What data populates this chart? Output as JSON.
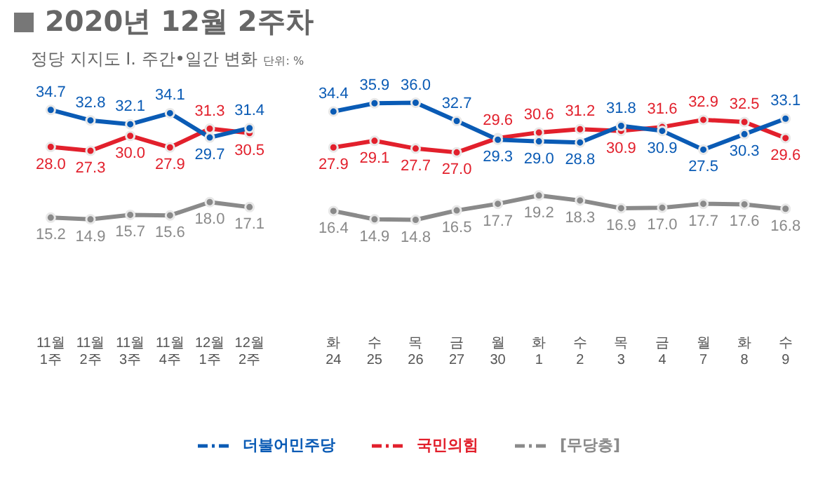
{
  "chart_data": [
    {
      "type": "line",
      "title": "2020년 12월 2주차",
      "subtitle": "정당 지지도 Ⅰ. 주간•일간 변화",
      "annotations": [
        "단위: %"
      ],
      "categories": [
        "11월\n1주",
        "11월\n2주",
        "11월\n3주",
        "11월\n4주",
        "12월\n1주",
        "12월\n2주"
      ],
      "series": [
        {
          "name": "더불어민주당",
          "color": "#0a5bb5",
          "values": [
            34.7,
            32.8,
            32.1,
            34.1,
            29.7,
            31.4
          ],
          "value_labels": [
            "34.7",
            "32.8",
            "32.1",
            "34.1",
            "29.7",
            "31.4"
          ]
        },
        {
          "name": "국민의힘",
          "color": "#e2202c",
          "values": [
            28.0,
            27.3,
            30.0,
            27.9,
            31.3,
            30.5
          ],
          "value_labels": [
            "28.0",
            "27.3",
            "30.0",
            "27.9",
            "31.3",
            "30.5"
          ]
        },
        {
          "name": "[무당층]",
          "color": "#8a8a8a",
          "values": [
            15.2,
            14.9,
            15.7,
            15.6,
            18.0,
            17.1
          ],
          "value_labels": [
            "15.2",
            "14.9",
            "15.7",
            "15.6",
            "18.0",
            "17.1"
          ]
        }
      ],
      "marker": "circle",
      "line_style": "solid",
      "grid": false,
      "legend": "bottom",
      "tick_labels": "x"
    },
    {
      "type": "line",
      "categories": [
        "화\n24",
        "수\n25",
        "목\n26",
        "금\n27",
        "월\n30",
        "화\n1",
        "수\n2",
        "목\n3",
        "금\n4",
        "월\n7",
        "화\n8",
        "수\n9"
      ],
      "series": [
        {
          "color": "#0a5bb5",
          "values": [
            34.4,
            35.9,
            36.0,
            32.7,
            29.3,
            29.0,
            28.8,
            31.8,
            30.9,
            27.5,
            30.3,
            33.1
          ],
          "value_labels": [
            "34.4",
            "35.9",
            "36.0",
            "32.7",
            "29.3",
            "29.0",
            "28.8",
            "31.8",
            "30.9",
            "27.5",
            "30.3",
            "33.1"
          ]
        },
        {
          "color": "#e2202c",
          "values": [
            27.9,
            29.1,
            27.7,
            27.0,
            29.6,
            30.6,
            31.2,
            30.9,
            31.6,
            32.9,
            32.5,
            29.6
          ],
          "value_labels": [
            "27.9",
            "29.1",
            "27.7",
            "27.0",
            "29.6",
            "30.6",
            "31.2",
            "30.9",
            "31.6",
            "32.9",
            "32.5",
            "29.6"
          ]
        },
        {
          "color": "#8a8a8a",
          "values": [
            16.4,
            14.9,
            14.8,
            16.5,
            17.7,
            19.2,
            18.3,
            16.9,
            17.0,
            17.7,
            17.6,
            16.8
          ],
          "value_labels": [
            "16.4",
            "14.9",
            "14.8",
            "16.5",
            "17.7",
            "19.2",
            "18.3",
            "16.9",
            "17.0",
            "17.7",
            "17.6",
            "16.8"
          ]
        }
      ],
      "marker": "circle",
      "line_style": "solid",
      "grid": false,
      "tick_labels": "x"
    }
  ]
}
